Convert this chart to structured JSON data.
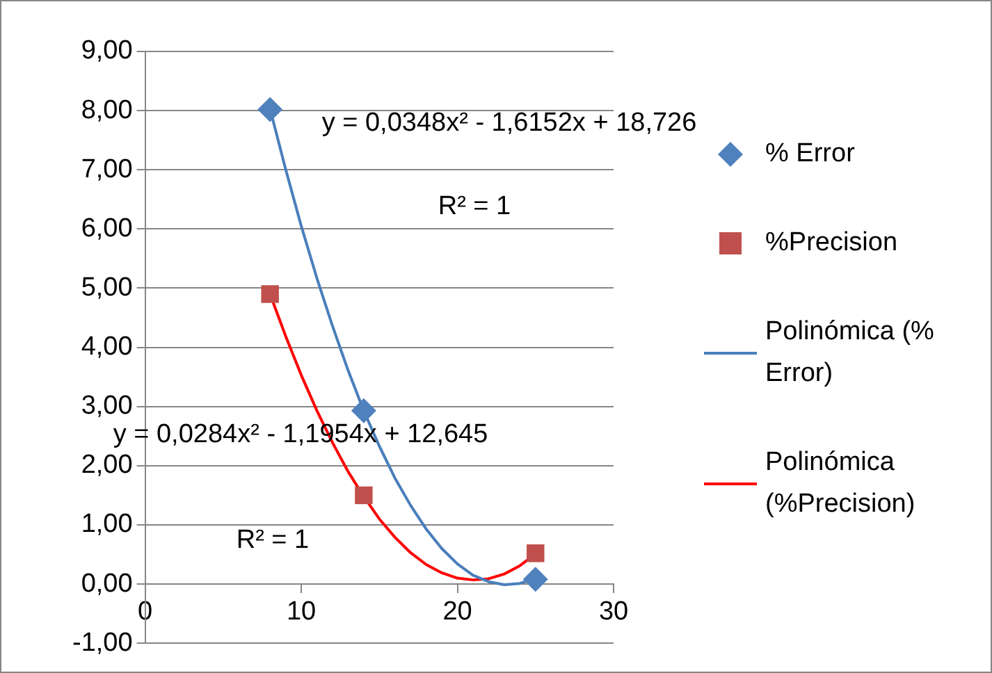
{
  "chart_data": {
    "type": "scatter",
    "series": [
      {
        "name": "% Error",
        "type": "scatter",
        "marker": "diamond",
        "color": "#4f81bd",
        "x": [
          8,
          14,
          25
        ],
        "values": [
          8.02,
          2.93,
          0.08
        ]
      },
      {
        "name": "%Precision",
        "type": "scatter",
        "marker": "square",
        "color": "#c0504d",
        "x": [
          8,
          14,
          25
        ],
        "values": [
          4.9,
          1.5,
          0.52
        ]
      },
      {
        "name": "Polinómica (% Error)",
        "type": "line",
        "marker": "none",
        "color": "#4a7ebb",
        "x": [
          8,
          9,
          10,
          11,
          12,
          13,
          14,
          15,
          16,
          17,
          18,
          19,
          20,
          21,
          22,
          23,
          24,
          25
        ],
        "values": [
          8.03,
          7.01,
          6.05,
          5.17,
          4.36,
          3.61,
          2.93,
          2.33,
          1.79,
          1.33,
          0.93,
          0.6,
          0.34,
          0.15,
          0.04,
          -0.01,
          0.01,
          0.1
        ]
      },
      {
        "name": "Polinómica (%Precision)",
        "type": "line",
        "marker": "none",
        "color": "#ff0000",
        "x": [
          8,
          9,
          10,
          11,
          12,
          13,
          14,
          15,
          16,
          17,
          18,
          19,
          20,
          21,
          22,
          23,
          24,
          25
        ],
        "values": [
          4.9,
          4.19,
          3.53,
          2.93,
          2.39,
          1.9,
          1.48,
          1.1,
          0.79,
          0.53,
          0.33,
          0.19,
          0.1,
          0.07,
          0.09,
          0.17,
          0.31,
          0.51
        ]
      }
    ],
    "xlim": [
      0,
      30
    ],
    "xticks": [
      0,
      10,
      20,
      30
    ],
    "ylim": [
      -1,
      9
    ],
    "yticks": [
      {
        "value": -1,
        "label": "-1,00"
      },
      {
        "value": 0,
        "label": "0,00"
      },
      {
        "value": 1,
        "label": "1,00"
      },
      {
        "value": 2,
        "label": "2,00"
      },
      {
        "value": 3,
        "label": "3,00"
      },
      {
        "value": 4,
        "label": "4,00"
      },
      {
        "value": 5,
        "label": "5,00"
      },
      {
        "value": 6,
        "label": "6,00"
      },
      {
        "value": 7,
        "label": "7,00"
      },
      {
        "value": 8,
        "label": "8,00"
      },
      {
        "value": 9,
        "label": "9,00"
      }
    ],
    "annotations": [
      "y = 0,0348x² - 1,6152x + 18,726",
      "R² = 1",
      "y = 0,0284x² - 1,1954x + 12,645",
      "R² = 1"
    ],
    "grid": "y",
    "legend": "right"
  }
}
